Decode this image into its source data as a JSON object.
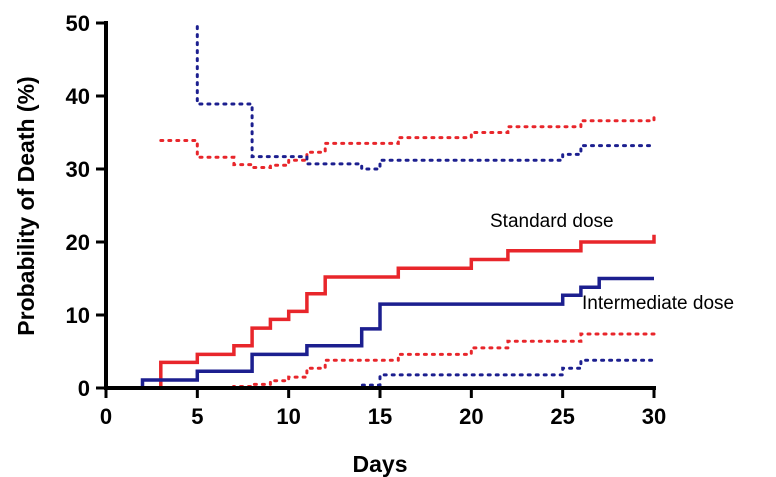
{
  "chart_data": {
    "type": "line",
    "title": "",
    "xlabel": "Days",
    "ylabel": "Probability of Death (%)",
    "xlim": [
      0,
      30
    ],
    "ylim": [
      0,
      50
    ],
    "x_ticks": [
      "0",
      "5",
      "10",
      "15",
      "20",
      "25",
      "30"
    ],
    "y_ticks": [
      "0",
      "10",
      "20",
      "30",
      "40",
      "50"
    ],
    "grid": false,
    "annotations": [
      {
        "text": "Standard dose",
        "series": "standard"
      },
      {
        "text": "Intermediate dose",
        "series": "intermediate"
      }
    ],
    "series": [
      {
        "id": "standard",
        "color": "#e8262b",
        "style": "solid",
        "step": true,
        "points": [
          [
            0,
            0
          ],
          [
            3,
            0
          ],
          [
            3,
            3.5
          ],
          [
            5,
            3.5
          ],
          [
            5,
            4.6
          ],
          [
            7,
            4.6
          ],
          [
            7,
            5.8
          ],
          [
            8,
            5.8
          ],
          [
            8,
            8.2
          ],
          [
            9,
            8.2
          ],
          [
            9,
            9.4
          ],
          [
            10,
            9.4
          ],
          [
            10,
            10.5
          ],
          [
            11,
            10.5
          ],
          [
            11,
            12.9
          ],
          [
            12,
            12.9
          ],
          [
            12,
            15.2
          ],
          [
            16,
            15.2
          ],
          [
            16,
            16.4
          ],
          [
            20,
            16.4
          ],
          [
            20,
            17.6
          ],
          [
            22,
            17.6
          ],
          [
            22,
            18.8
          ],
          [
            26,
            18.8
          ],
          [
            26,
            20
          ],
          [
            30,
            20
          ],
          [
            30,
            21
          ]
        ]
      },
      {
        "id": "intermediate",
        "color": "#1c1f8f",
        "style": "solid",
        "step": true,
        "points": [
          [
            0,
            0
          ],
          [
            2,
            0
          ],
          [
            2,
            1.1
          ],
          [
            5,
            1.1
          ],
          [
            5,
            2.3
          ],
          [
            8,
            2.3
          ],
          [
            8,
            4.6
          ],
          [
            11,
            4.6
          ],
          [
            11,
            5.8
          ],
          [
            14,
            5.8
          ],
          [
            14,
            8.1
          ],
          [
            15,
            8.1
          ],
          [
            15,
            11.5
          ],
          [
            25,
            11.5
          ],
          [
            25,
            12.7
          ],
          [
            26,
            12.7
          ],
          [
            26,
            13.8
          ],
          [
            27,
            13.8
          ],
          [
            27,
            15
          ],
          [
            30,
            15
          ]
        ]
      },
      {
        "id": "standard-upper-ci",
        "color": "#e8262b",
        "style": "dotted",
        "step": true,
        "points": [
          [
            3,
            33.9
          ],
          [
            5,
            33.9
          ],
          [
            5,
            31.6
          ],
          [
            7,
            31.6
          ],
          [
            7,
            30.6
          ],
          [
            8,
            30.6
          ],
          [
            8,
            30.2
          ],
          [
            9,
            30.2
          ],
          [
            9,
            30.5
          ],
          [
            10,
            30.5
          ],
          [
            10,
            31.2
          ],
          [
            11,
            31.2
          ],
          [
            11,
            32.3
          ],
          [
            12,
            32.3
          ],
          [
            12,
            33.5
          ],
          [
            16,
            33.5
          ],
          [
            16,
            34.3
          ],
          [
            20,
            34.3
          ],
          [
            20,
            35
          ],
          [
            22,
            35
          ],
          [
            22,
            35.8
          ],
          [
            26,
            35.8
          ],
          [
            26,
            36.6
          ],
          [
            30,
            36.6
          ],
          [
            30,
            37.2
          ]
        ]
      },
      {
        "id": "standard-lower-ci",
        "color": "#e8262b",
        "style": "dotted",
        "step": true,
        "points": [
          [
            0,
            0
          ],
          [
            7,
            0
          ],
          [
            7,
            0.2
          ],
          [
            8,
            0.2
          ],
          [
            8,
            0.5
          ],
          [
            9,
            0.5
          ],
          [
            9,
            1.0
          ],
          [
            10,
            1.0
          ],
          [
            10,
            1.5
          ],
          [
            11,
            1.5
          ],
          [
            11,
            2.7
          ],
          [
            12,
            2.7
          ],
          [
            12,
            3.8
          ],
          [
            16,
            3.8
          ],
          [
            16,
            4.6
          ],
          [
            20,
            4.6
          ],
          [
            20,
            5.5
          ],
          [
            22,
            5.5
          ],
          [
            22,
            6.4
          ],
          [
            26,
            6.4
          ],
          [
            26,
            7.4
          ],
          [
            30,
            7.4
          ]
        ]
      },
      {
        "id": "intermediate-upper-ci",
        "color": "#1c1f8f",
        "style": "dotted",
        "step": true,
        "points": [
          [
            5,
            49.5
          ],
          [
            5,
            38.9
          ],
          [
            8,
            38.9
          ],
          [
            8,
            31.7
          ],
          [
            11,
            31.7
          ],
          [
            11,
            30.7
          ],
          [
            14,
            30.7
          ],
          [
            14,
            30
          ],
          [
            15,
            30
          ],
          [
            15,
            31.2
          ],
          [
            25,
            31.2
          ],
          [
            25,
            32
          ],
          [
            26,
            32
          ],
          [
            26,
            33.2
          ],
          [
            30,
            33.2
          ]
        ]
      },
      {
        "id": "intermediate-lower-ci",
        "color": "#1c1f8f",
        "style": "dotted",
        "step": true,
        "points": [
          [
            5,
            0
          ],
          [
            14,
            0
          ],
          [
            14,
            0.4
          ],
          [
            15,
            0.4
          ],
          [
            15,
            1.8
          ],
          [
            25,
            1.8
          ],
          [
            25,
            2.7
          ],
          [
            26,
            2.7
          ],
          [
            26,
            3.8
          ],
          [
            30,
            3.8
          ]
        ]
      }
    ]
  }
}
